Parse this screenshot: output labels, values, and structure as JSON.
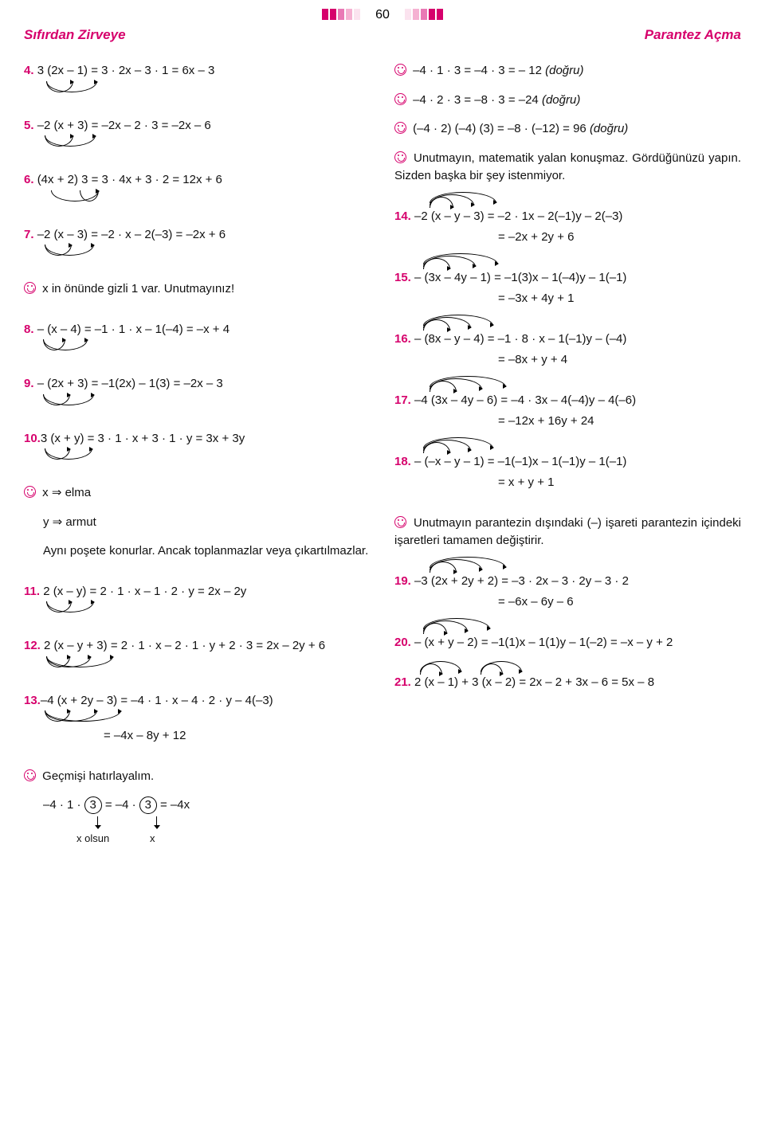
{
  "page_number": "60",
  "header_left": "Sıfırdan Zirveye",
  "header_right": "Parantez Açma",
  "left": {
    "p4": "3 (2x – 1) = 3 · 2x – 3 · 1 = 6x – 3",
    "p5": "–2 (x + 3) = –2x – 2 · 3 = –2x – 6",
    "p6": "(4x + 2) 3 = 3 · 4x + 3 · 2 = 12x + 6",
    "p7": "–2 (x – 3) = –2 · x – 2(–3) = –2x + 6",
    "note7": "x in önünde gizli 1 var. Unutmayınız!",
    "p8": "– (x – 4) = –1 · 1 · x – 1(–4) = –x + 4",
    "p9": "– (2x + 3) = –1(2x) – 1(3) = –2x – 3",
    "p10": "3 (x + y) = 3 · 1 · x + 3 · 1 · y = 3x + 3y",
    "note10a": "x  ⇒  elma",
    "note10b": "y  ⇒  armut",
    "note10c": "Aynı poşete konurlar. Ancak toplanmazlar veya çıkartılmazlar.",
    "p11": "2 (x – y) = 2 · 1 · x – 1 · 2 · y = 2x – 2y",
    "p12": "2 (x – y + 3) = 2 · 1 · x – 2 · 1 · y + 2 · 3 = 2x – 2y + 6",
    "p13": "–4 (x + 2y – 3) = –4 · 1 · x – 4 · 2 · y – 4(–3)",
    "p13r": "= –4x – 8y + 12",
    "note13": "Geçmişi hatırlayalım.",
    "bottom_eq_a": "–4 · 1 · ",
    "bottom_eq_b": " = –4 · ",
    "bottom_eq_c": " = –4x",
    "bottom_lbl_a": "x olsun",
    "bottom_lbl_b": "x"
  },
  "right": {
    "c1": "–4 · 1 · 3 = –4 · 3 = – 12  (doğru)",
    "c2": "–4 · 2 · 3 = –8 · 3 = –24  (doğru)",
    "c3": "(–4 · 2) (–4) (3) = –8 · (–12) = 96  (doğru)",
    "note_top": "Unutmayın, matematik yalan konuşmaz. Gördüğünüzü yapın. Sizden başka bir şey istenmiyor.",
    "p14": "–2 (x – y – 3) = –2 · 1x – 2(–1)y – 2(–3)",
    "p14r": "= –2x + 2y + 6",
    "p15": "– (3x – 4y – 1) = –1(3)x – 1(–4)y – 1(–1)",
    "p15r": "= –3x + 4y + 1",
    "p16": "– (8x – y – 4) = –1 · 8 · x – 1(–1)y – (–4)",
    "p16r": "= –8x + y + 4",
    "p17": "–4 (3x – 4y – 6) = –4 · 3x – 4(–4)y – 4(–6)",
    "p17r": "= –12x + 16y + 24",
    "p18": "– (–x – y – 1) = –1(–1)x – 1(–1)y – 1(–1)",
    "p18r": "= x + y + 1",
    "note18": "Unutmayın parantezin dışındaki (–) işareti parantezin içindeki işaretleri tamamen değiştirir.",
    "p19": "–3 (2x + 2y + 2) = –3 · 2x – 3 · 2y – 3 · 2",
    "p19r": "= –6x – 6y – 6",
    "p20": "– (x + y – 2) = –1(1)x – 1(1)y – 1(–2) = –x – y + 2",
    "p21": "2 (x – 1) + 3 (x – 2) = 2x – 2 + 3x – 6 = 5x – 8"
  },
  "colors": {
    "magenta": "#d6006c",
    "pink_light": "#f5b1d2"
  }
}
